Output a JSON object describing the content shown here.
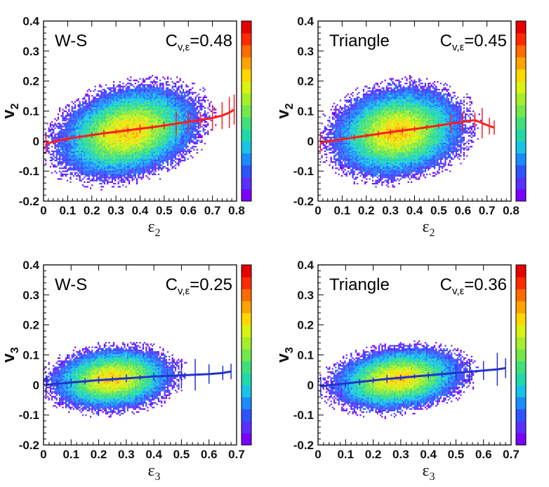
{
  "chart_data": [
    {
      "type": "heatmap",
      "ylabel_main": "v",
      "ylabel_sub": "2",
      "xlabel_main": "ε",
      "xlabel_sub": "2",
      "xlim": [
        0,
        0.8
      ],
      "ylim": [
        -0.2,
        0.4
      ],
      "xticks": [
        "0",
        "0.1",
        "0.2",
        "0.3",
        "0.4",
        "0.5",
        "0.6",
        "0.7",
        "0.8"
      ],
      "yticks": [
        "-0.2",
        "-0.1",
        "0",
        "0.1",
        "0.2",
        "0.3",
        "0.4"
      ],
      "model_label": "W-S",
      "corr_symbol": "C",
      "corr_sub": "v,ε",
      "corr_text": "=0.48",
      "correlation": 0.48,
      "density_center": [
        0.35,
        0.03
      ],
      "density_spread": [
        0.16,
        0.08
      ],
      "profile": {
        "color": "#ff1e1e",
        "x": [
          0.01,
          0.05,
          0.1,
          0.15,
          0.2,
          0.25,
          0.3,
          0.35,
          0.4,
          0.45,
          0.5,
          0.55,
          0.6,
          0.65,
          0.7,
          0.74,
          0.77,
          0.79
        ],
        "y": [
          -0.01,
          0.0,
          0.008,
          0.014,
          0.02,
          0.026,
          0.031,
          0.036,
          0.041,
          0.046,
          0.052,
          0.058,
          0.064,
          0.07,
          0.077,
          0.085,
          0.095,
          0.105
        ]
      }
    },
    {
      "type": "heatmap",
      "ylabel_main": "v",
      "ylabel_sub": "2",
      "xlabel_main": "ε",
      "xlabel_sub": "2",
      "xlim": [
        0,
        0.8
      ],
      "ylim": [
        -0.2,
        0.4
      ],
      "xticks": [
        "0",
        "0.1",
        "0.2",
        "0.3",
        "0.4",
        "0.5",
        "0.6",
        "0.7",
        "0.8"
      ],
      "yticks": [
        "-0.2",
        "-0.1",
        "0",
        "0.1",
        "0.2",
        "0.3",
        "0.4"
      ],
      "model_label": "Triangle",
      "corr_symbol": "C",
      "corr_sub": "v,ε",
      "corr_text": "=0.45",
      "correlation": 0.45,
      "density_center": [
        0.33,
        0.03
      ],
      "density_spread": [
        0.15,
        0.08
      ],
      "profile": {
        "color": "#ff1e1e",
        "x": [
          0.01,
          0.05,
          0.1,
          0.15,
          0.2,
          0.25,
          0.3,
          0.35,
          0.4,
          0.45,
          0.5,
          0.55,
          0.6,
          0.65,
          0.68,
          0.71,
          0.73
        ],
        "y": [
          -0.005,
          0.0,
          0.006,
          0.012,
          0.018,
          0.024,
          0.03,
          0.035,
          0.04,
          0.046,
          0.052,
          0.058,
          0.064,
          0.07,
          0.06,
          0.05,
          0.045
        ]
      }
    },
    {
      "type": "heatmap",
      "ylabel_main": "v",
      "ylabel_sub": "3",
      "xlabel_main": "ε",
      "xlabel_sub": "3",
      "xlim": [
        0,
        0.7
      ],
      "ylim": [
        -0.2,
        0.4
      ],
      "xticks": [
        "0",
        "0.1",
        "0.2",
        "0.3",
        "0.4",
        "0.5",
        "0.6",
        "0.7"
      ],
      "yticks": [
        "-0.2",
        "-0.1",
        "0",
        "0.1",
        "0.2",
        "0.3",
        "0.4"
      ],
      "model_label": "W-S",
      "corr_symbol": "C",
      "corr_sub": "v,ε",
      "corr_text": "=0.25",
      "correlation": 0.25,
      "density_center": [
        0.25,
        0.02
      ],
      "density_spread": [
        0.12,
        0.055
      ],
      "profile": {
        "color": "#2233cc",
        "x": [
          0.01,
          0.05,
          0.1,
          0.15,
          0.2,
          0.25,
          0.3,
          0.35,
          0.4,
          0.45,
          0.5,
          0.55,
          0.6,
          0.65,
          0.68
        ],
        "y": [
          0.0,
          0.004,
          0.008,
          0.012,
          0.016,
          0.019,
          0.022,
          0.025,
          0.028,
          0.03,
          0.032,
          0.034,
          0.036,
          0.04,
          0.045
        ]
      }
    },
    {
      "type": "heatmap",
      "ylabel_main": "v",
      "ylabel_sub": "3",
      "xlabel_main": "ε",
      "xlabel_sub": "3",
      "xlim": [
        0,
        0.7
      ],
      "ylim": [
        -0.2,
        0.4
      ],
      "xticks": [
        "0",
        "0.1",
        "0.2",
        "0.3",
        "0.4",
        "0.5",
        "0.6",
        "0.7"
      ],
      "yticks": [
        "-0.2",
        "-0.1",
        "0",
        "0.1",
        "0.2",
        "0.3",
        "0.4"
      ],
      "model_label": "Triangle",
      "corr_symbol": "C",
      "corr_sub": "v,ε",
      "corr_text": "=0.36",
      "correlation": 0.36,
      "density_center": [
        0.29,
        0.02
      ],
      "density_spread": [
        0.13,
        0.055
      ],
      "profile": {
        "color": "#2233cc",
        "x": [
          0.01,
          0.05,
          0.1,
          0.15,
          0.2,
          0.25,
          0.3,
          0.35,
          0.4,
          0.45,
          0.5,
          0.55,
          0.6,
          0.65,
          0.68
        ],
        "y": [
          -0.005,
          0.0,
          0.005,
          0.01,
          0.015,
          0.02,
          0.024,
          0.028,
          0.032,
          0.036,
          0.04,
          0.044,
          0.048,
          0.052,
          0.056
        ]
      }
    }
  ],
  "palette": [
    "#7a00ff",
    "#5a30ff",
    "#2d55ff",
    "#1a8cff",
    "#17c4e8",
    "#20d9a8",
    "#3fe07a",
    "#72e84a",
    "#a6ee2a",
    "#d9f210",
    "#ffd800",
    "#ffa300",
    "#ff6b00",
    "#ff2a00",
    "#e60000"
  ]
}
